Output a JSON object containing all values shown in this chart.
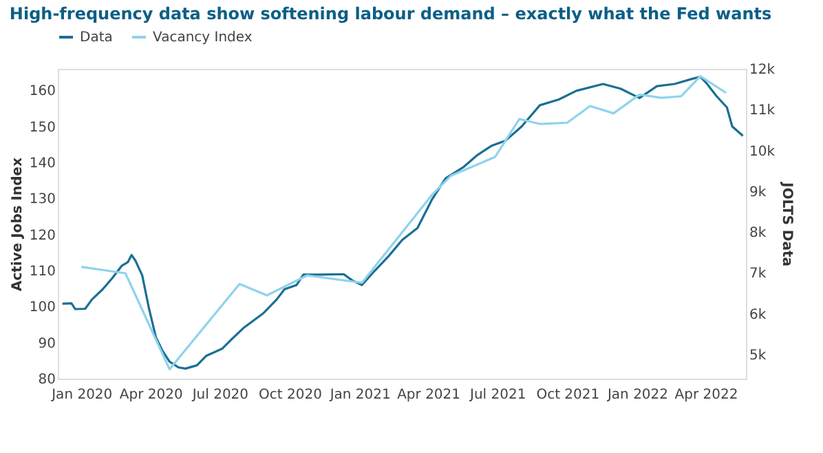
{
  "chart_data": {
    "type": "line",
    "title": "High-frequency data show softening labour demand – exactly what the Fed wants",
    "ylabel": "Active Jobs Index",
    "y2label": "JOLTS Data",
    "xlim": [
      "2019-12-01",
      "2022-05-24"
    ],
    "xticks": [
      {
        "value": "2020-01-01",
        "label": "Jan 2020"
      },
      {
        "value": "2020-04-01",
        "label": "Apr 2020"
      },
      {
        "value": "2020-07-01",
        "label": "Jul 2020"
      },
      {
        "value": "2020-10-01",
        "label": "Oct 2020"
      },
      {
        "value": "2021-01-01",
        "label": "Jan 2021"
      },
      {
        "value": "2021-04-01",
        "label": "Apr 2021"
      },
      {
        "value": "2021-07-01",
        "label": "Jul 2021"
      },
      {
        "value": "2021-10-01",
        "label": "Oct 2021"
      },
      {
        "value": "2022-01-01",
        "label": "Jan 2022"
      },
      {
        "value": "2022-04-01",
        "label": "Apr 2022"
      }
    ],
    "ylim": [
      80,
      166
    ],
    "yticks": [
      80,
      90,
      100,
      110,
      120,
      130,
      140,
      150,
      160
    ],
    "y2lim": [
      4410,
      12000
    ],
    "y2ticks": [
      {
        "value": 5000,
        "label": "5k"
      },
      {
        "value": 6000,
        "label": "6k"
      },
      {
        "value": 7000,
        "label": "7k"
      },
      {
        "value": 8000,
        "label": "8k"
      },
      {
        "value": 9000,
        "label": "9k"
      },
      {
        "value": 10000,
        "label": "10k"
      },
      {
        "value": 11000,
        "label": "11k"
      },
      {
        "value": 12000,
        "label": "12k"
      }
    ],
    "legend": "top left",
    "grid": false,
    "series": [
      {
        "name": "Data",
        "color": "#1b6f93",
        "x": [
          "2019-12-07",
          "2019-12-19",
          "2019-12-24",
          "2020-01-06",
          "2020-01-15",
          "2020-01-29",
          "2020-02-11",
          "2020-02-23",
          "2020-03-02",
          "2020-03-07",
          "2020-03-12",
          "2020-03-21",
          "2020-03-30",
          "2020-04-08",
          "2020-04-17",
          "2020-04-26",
          "2020-05-08",
          "2020-05-17",
          "2020-06-01",
          "2020-06-13",
          "2020-07-04",
          "2020-07-15",
          "2020-08-02",
          "2020-08-27",
          "2020-09-14",
          "2020-09-24",
          "2020-10-10",
          "2020-10-19",
          "2020-11-11",
          "2020-12-11",
          "2020-12-22",
          "2021-01-04",
          "2021-01-21",
          "2021-02-08",
          "2021-02-26",
          "2021-03-18",
          "2021-04-06",
          "2021-04-24",
          "2021-05-18",
          "2021-06-05",
          "2021-06-24",
          "2021-07-12",
          "2021-08-02",
          "2021-08-26",
          "2021-09-20",
          "2021-10-13",
          "2021-11-17",
          "2021-12-10",
          "2022-01-04",
          "2022-01-27",
          "2022-02-19",
          "2022-03-14",
          "2022-03-25",
          "2022-04-03",
          "2022-04-15",
          "2022-04-29",
          "2022-05-06",
          "2022-05-20"
        ],
        "values": [
          100.8,
          100.9,
          99.3,
          99.4,
          102,
          104.8,
          108,
          111.3,
          112.3,
          114.3,
          112.8,
          108.7,
          99.4,
          91.5,
          87.6,
          84.7,
          83.1,
          82.8,
          83.7,
          86.3,
          88.3,
          90.6,
          94.2,
          98.1,
          102,
          104.8,
          106,
          108.9,
          108.9,
          109,
          107.3,
          106,
          110,
          114,
          118.5,
          121.8,
          129.7,
          135.6,
          138.8,
          142.1,
          144.7,
          146.1,
          150,
          155.9,
          157.5,
          159.9,
          161.8,
          160.5,
          157.9,
          161.2,
          161.8,
          163.2,
          163.8,
          161.8,
          158.5,
          155.3,
          150,
          147.4
        ]
      },
      {
        "name": "Vacancy Index",
        "color": "#8fd3ec",
        "axis": "y2",
        "x": [
          "2020-01-01",
          "2020-02-28",
          "2020-04-26",
          "2020-07-27",
          "2020-09-01",
          "2020-10-24",
          "2021-01-04",
          "2021-04-06",
          "2021-05-01",
          "2021-06-28",
          "2021-07-30",
          "2021-08-26",
          "2021-10-01",
          "2021-10-31",
          "2021-12-01",
          "2022-01-04",
          "2022-02-02",
          "2022-02-28",
          "2022-03-25",
          "2022-04-28"
        ],
        "values": [
          7150,
          6990,
          4640,
          6730,
          6450,
          6940,
          6760,
          8910,
          9380,
          9840,
          10770,
          10650,
          10680,
          11090,
          10910,
          11370,
          11290,
          11330,
          11820,
          11410
        ]
      }
    ]
  }
}
